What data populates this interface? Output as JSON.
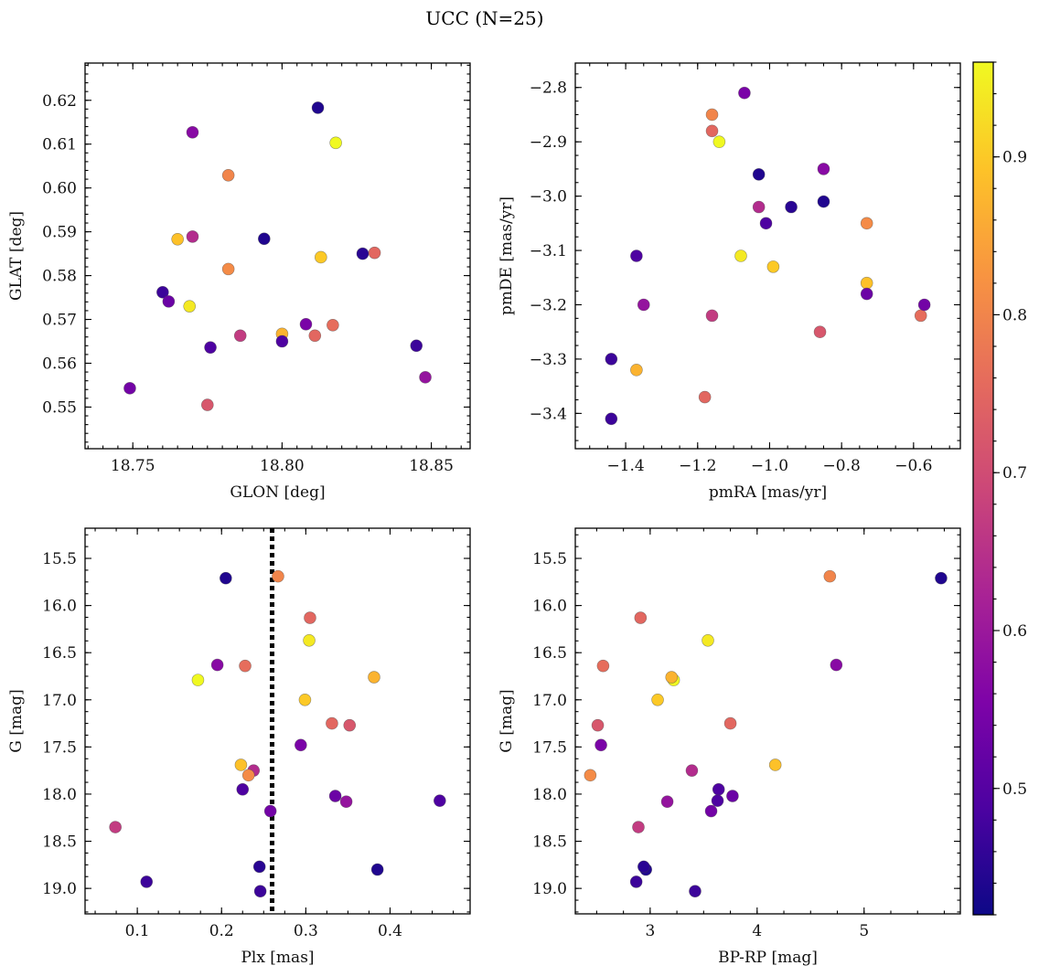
{
  "title": "UCC (N=25)",
  "chart_data": {
    "type": "scatter",
    "colorbar": {
      "range": [
        0.42,
        0.96
      ],
      "ticks": [
        0.5,
        0.6,
        0.7,
        0.8,
        0.9
      ],
      "tick_labels": [
        "0.5",
        "0.6",
        "0.7",
        "0.8",
        "0.9"
      ],
      "colormap": "plasma"
    },
    "stars": [
      {
        "glon": 18.812,
        "glat": 0.6183,
        "pmra": -1.03,
        "pmde": -2.96,
        "plx": 0.205,
        "g": 15.71,
        "bprp": 5.72,
        "c": 0.44
      },
      {
        "glon": 18.818,
        "glat": 0.6103,
        "pmra": -1.14,
        "pmde": -2.9,
        "plx": 0.172,
        "g": 16.79,
        "bprp": 3.22,
        "c": 0.96
      },
      {
        "glon": 18.77,
        "glat": 0.6127,
        "pmra": -0.85,
        "pmde": -2.95,
        "plx": 0.195,
        "g": 16.63,
        "bprp": 4.74,
        "c": 0.57
      },
      {
        "glon": 18.782,
        "glat": 0.6029,
        "pmra": -1.16,
        "pmde": -2.85,
        "plx": 0.267,
        "g": 15.69,
        "bprp": 4.68,
        "c": 0.8
      },
      {
        "glon": 18.794,
        "glat": 0.5884,
        "pmra": -0.85,
        "pmde": -3.01,
        "plx": 0.385,
        "g": 18.8,
        "bprp": 2.96,
        "c": 0.44
      },
      {
        "glon": 18.765,
        "glat": 0.5883,
        "pmra": -0.73,
        "pmde": -3.16,
        "plx": 0.223,
        "g": 17.69,
        "bprp": 4.17,
        "c": 0.89
      },
      {
        "glon": 18.77,
        "glat": 0.5889,
        "pmra": -1.03,
        "pmde": -3.02,
        "plx": 0.238,
        "g": 17.75,
        "bprp": 3.39,
        "c": 0.64
      },
      {
        "glon": 18.827,
        "glat": 0.585,
        "pmra": -0.94,
        "pmde": -3.02,
        "plx": 0.245,
        "g": 18.77,
        "bprp": 2.94,
        "c": 0.45
      },
      {
        "glon": 18.831,
        "glat": 0.5852,
        "pmra": -1.16,
        "pmde": -2.88,
        "plx": 0.305,
        "g": 16.13,
        "bprp": 2.91,
        "c": 0.75
      },
      {
        "glon": 18.813,
        "glat": 0.5842,
        "pmra": -0.99,
        "pmde": -3.13,
        "plx": 0.299,
        "g": 17.0,
        "bprp": 3.07,
        "c": 0.9
      },
      {
        "glon": 18.782,
        "glat": 0.5815,
        "pmra": -0.73,
        "pmde": -3.05,
        "plx": 0.232,
        "g": 17.8,
        "bprp": 2.44,
        "c": 0.81
      },
      {
        "glon": 18.76,
        "glat": 0.5762,
        "pmra": -1.44,
        "pmde": -3.41,
        "plx": 0.246,
        "g": 19.03,
        "bprp": 3.42,
        "c": 0.47
      },
      {
        "glon": 18.762,
        "glat": 0.5741,
        "pmra": -0.73,
        "pmde": -3.18,
        "plx": 0.335,
        "g": 18.02,
        "bprp": 3.77,
        "c": 0.53
      },
      {
        "glon": 18.769,
        "glat": 0.573,
        "pmra": -1.08,
        "pmde": -3.11,
        "plx": 0.304,
        "g": 16.37,
        "bprp": 3.54,
        "c": 0.94
      },
      {
        "glon": 18.808,
        "glat": 0.5689,
        "pmra": -1.07,
        "pmde": -2.81,
        "plx": 0.294,
        "g": 17.48,
        "bprp": 2.54,
        "c": 0.55
      },
      {
        "glon": 18.817,
        "glat": 0.5687,
        "pmra": -0.58,
        "pmde": -3.22,
        "plx": 0.228,
        "g": 16.64,
        "bprp": 2.56,
        "c": 0.76
      },
      {
        "glon": 18.8,
        "glat": 0.5667,
        "pmra": -1.37,
        "pmde": -3.32,
        "plx": 0.381,
        "g": 16.76,
        "bprp": 3.2,
        "c": 0.87
      },
      {
        "glon": 18.786,
        "glat": 0.5663,
        "pmra": -1.16,
        "pmde": -3.22,
        "plx": 0.074,
        "g": 18.35,
        "bprp": 2.89,
        "c": 0.67
      },
      {
        "glon": 18.811,
        "glat": 0.5663,
        "pmra": -1.18,
        "pmde": -3.37,
        "plx": 0.331,
        "g": 17.25,
        "bprp": 3.75,
        "c": 0.75
      },
      {
        "glon": 18.8,
        "glat": 0.565,
        "pmra": -1.01,
        "pmde": -3.05,
        "plx": 0.225,
        "g": 17.95,
        "bprp": 3.64,
        "c": 0.49
      },
      {
        "glon": 18.776,
        "glat": 0.5636,
        "pmra": -1.37,
        "pmde": -3.11,
        "plx": 0.459,
        "g": 18.07,
        "bprp": 3.63,
        "c": 0.49
      },
      {
        "glon": 18.845,
        "glat": 0.564,
        "pmra": -1.44,
        "pmde": -3.3,
        "plx": 0.111,
        "g": 18.93,
        "bprp": 2.87,
        "c": 0.47
      },
      {
        "glon": 18.848,
        "glat": 0.5568,
        "pmra": -1.35,
        "pmde": -3.2,
        "plx": 0.348,
        "g": 18.08,
        "bprp": 3.16,
        "c": 0.59
      },
      {
        "glon": 18.749,
        "glat": 0.5543,
        "pmra": -0.57,
        "pmde": -3.2,
        "plx": 0.258,
        "g": 18.18,
        "bprp": 3.57,
        "c": 0.54
      },
      {
        "glon": 18.775,
        "glat": 0.5505,
        "pmra": -0.86,
        "pmde": -3.25,
        "plx": 0.352,
        "g": 17.27,
        "bprp": 2.51,
        "c": 0.72
      }
    ],
    "panels": [
      {
        "id": "glon-glat",
        "xkey": "glon",
        "ykey": "glat",
        "xlabel": "GLON [deg]",
        "ylabel": "GLAT [deg]",
        "xlim": [
          18.734,
          18.863
        ],
        "ylim": [
          0.5405,
          0.6285
        ],
        "yinvert": false,
        "xticks": [
          18.75,
          18.8,
          18.85
        ],
        "xtick_labels": [
          "18.75",
          "18.80",
          "18.85"
        ],
        "xminor": 0.005,
        "yticks": [
          0.55,
          0.56,
          0.57,
          0.58,
          0.59,
          0.6,
          0.61,
          0.62
        ],
        "ytick_labels": [
          "0.55",
          "0.56",
          "0.57",
          "0.58",
          "0.59",
          "0.60",
          "0.61",
          "0.62"
        ],
        "yminor": 0.002,
        "vline": null
      },
      {
        "id": "pmra-pmde",
        "xkey": "pmra",
        "ykey": "pmde",
        "xlabel": "pmRA [mas/yr]",
        "ylabel": "pmDE [mas/yr]",
        "xlim": [
          -1.54,
          -0.47
        ],
        "ylim": [
          -3.465,
          -2.755
        ],
        "yinvert": false,
        "xticks": [
          -1.4,
          -1.2,
          -1.0,
          -0.8,
          -0.6
        ],
        "xtick_labels": [
          "−1.4",
          "−1.2",
          "−1.0",
          "−0.8",
          "−0.6"
        ],
        "xminor": 0.05,
        "yticks": [
          -3.4,
          -3.3,
          -3.2,
          -3.1,
          -3.0,
          -2.9,
          -2.8
        ],
        "ytick_labels": [
          "−3.4",
          "−3.3",
          "−3.2",
          "−3.1",
          "−3.0",
          "−2.9",
          "−2.8"
        ],
        "yminor": 0.025,
        "vline": null
      },
      {
        "id": "plx-g",
        "xkey": "plx",
        "ykey": "g",
        "xlabel": "Plx [mas]",
        "ylabel": "G [mag]",
        "xlim": [
          0.038,
          0.495
        ],
        "ylim": [
          15.18,
          19.27
        ],
        "yinvert": true,
        "xticks": [
          0.1,
          0.2,
          0.3,
          0.4
        ],
        "xtick_labels": [
          "0.1",
          "0.2",
          "0.3",
          "0.4"
        ],
        "xminor": 0.025,
        "yticks": [
          15.5,
          16.0,
          16.5,
          17.0,
          17.5,
          18.0,
          18.5,
          19.0
        ],
        "ytick_labels": [
          "15.5",
          "16.0",
          "16.5",
          "17.0",
          "17.5",
          "18.0",
          "18.5",
          "19.0"
        ],
        "yminor": 0.125,
        "vline": 0.26
      },
      {
        "id": "bprp-g",
        "xkey": "bprp",
        "ykey": "g",
        "xlabel": "BP-RP [mag]",
        "ylabel": "G [mag]",
        "xlim": [
          2.3,
          5.9
        ],
        "ylim": [
          15.18,
          19.27
        ],
        "yinvert": true,
        "xticks": [
          3,
          4,
          5
        ],
        "xtick_labels": [
          "3",
          "4",
          "5"
        ],
        "xminor": 0.25,
        "yticks": [
          15.5,
          16.0,
          16.5,
          17.0,
          17.5,
          18.0,
          18.5,
          19.0
        ],
        "ytick_labels": [
          "15.5",
          "16.0",
          "16.5",
          "17.0",
          "17.5",
          "18.0",
          "18.5",
          "19.0"
        ],
        "yminor": 0.125,
        "vline": null
      }
    ]
  }
}
